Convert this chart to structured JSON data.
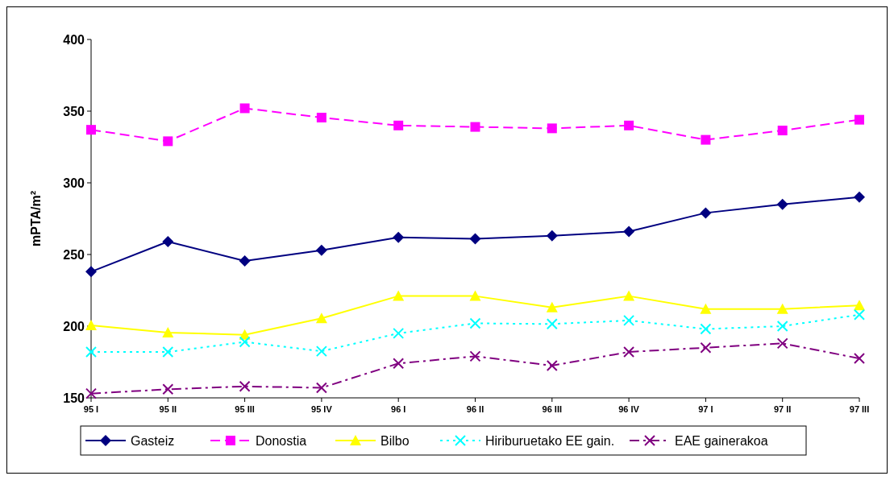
{
  "chart_data": {
    "type": "line",
    "ylabel": "mPTA/m²",
    "categories": [
      "95 I",
      "95 II",
      "95 III",
      "95 IV",
      "96 I",
      "96 II",
      "96 III",
      "96 IV",
      "97 I",
      "97 II",
      "97 III"
    ],
    "ylim": [
      150,
      400
    ],
    "yticks": [
      150,
      200,
      250,
      300,
      350,
      400
    ],
    "grid": false,
    "legend": "bottom",
    "series": [
      {
        "name": "Gasteiz",
        "color": "#000080",
        "marker": "diamond",
        "line_style": "solid",
        "values": [
          238,
          259,
          245.5,
          253,
          262,
          261,
          263,
          266,
          279,
          285,
          290
        ]
      },
      {
        "name": "Donostia",
        "color": "#ff00ff",
        "marker": "square",
        "line_style": "dashed",
        "values": [
          337,
          329,
          352,
          345.5,
          340,
          339,
          338,
          340,
          330,
          336.5,
          344
        ]
      },
      {
        "name": "Bilbo",
        "color": "#ffff00",
        "marker": "triangle",
        "line_style": "solid",
        "values": [
          200.5,
          195.5,
          194,
          205.5,
          221,
          221,
          213,
          221,
          212,
          212,
          214.5
        ]
      },
      {
        "name": "Hiriburuetako EE gain.",
        "color": "#00ffff",
        "marker": "cross",
        "line_style": "dotted",
        "values": [
          182,
          182,
          189,
          182.5,
          195,
          202,
          201.5,
          204,
          198,
          200,
          208
        ]
      },
      {
        "name": "EAE gainerakoa",
        "color": "#800080",
        "marker": "cross",
        "line_style": "dashdot",
        "values": [
          153,
          156,
          158,
          157,
          174,
          179,
          172.5,
          182,
          185,
          188,
          177.5
        ]
      }
    ]
  }
}
